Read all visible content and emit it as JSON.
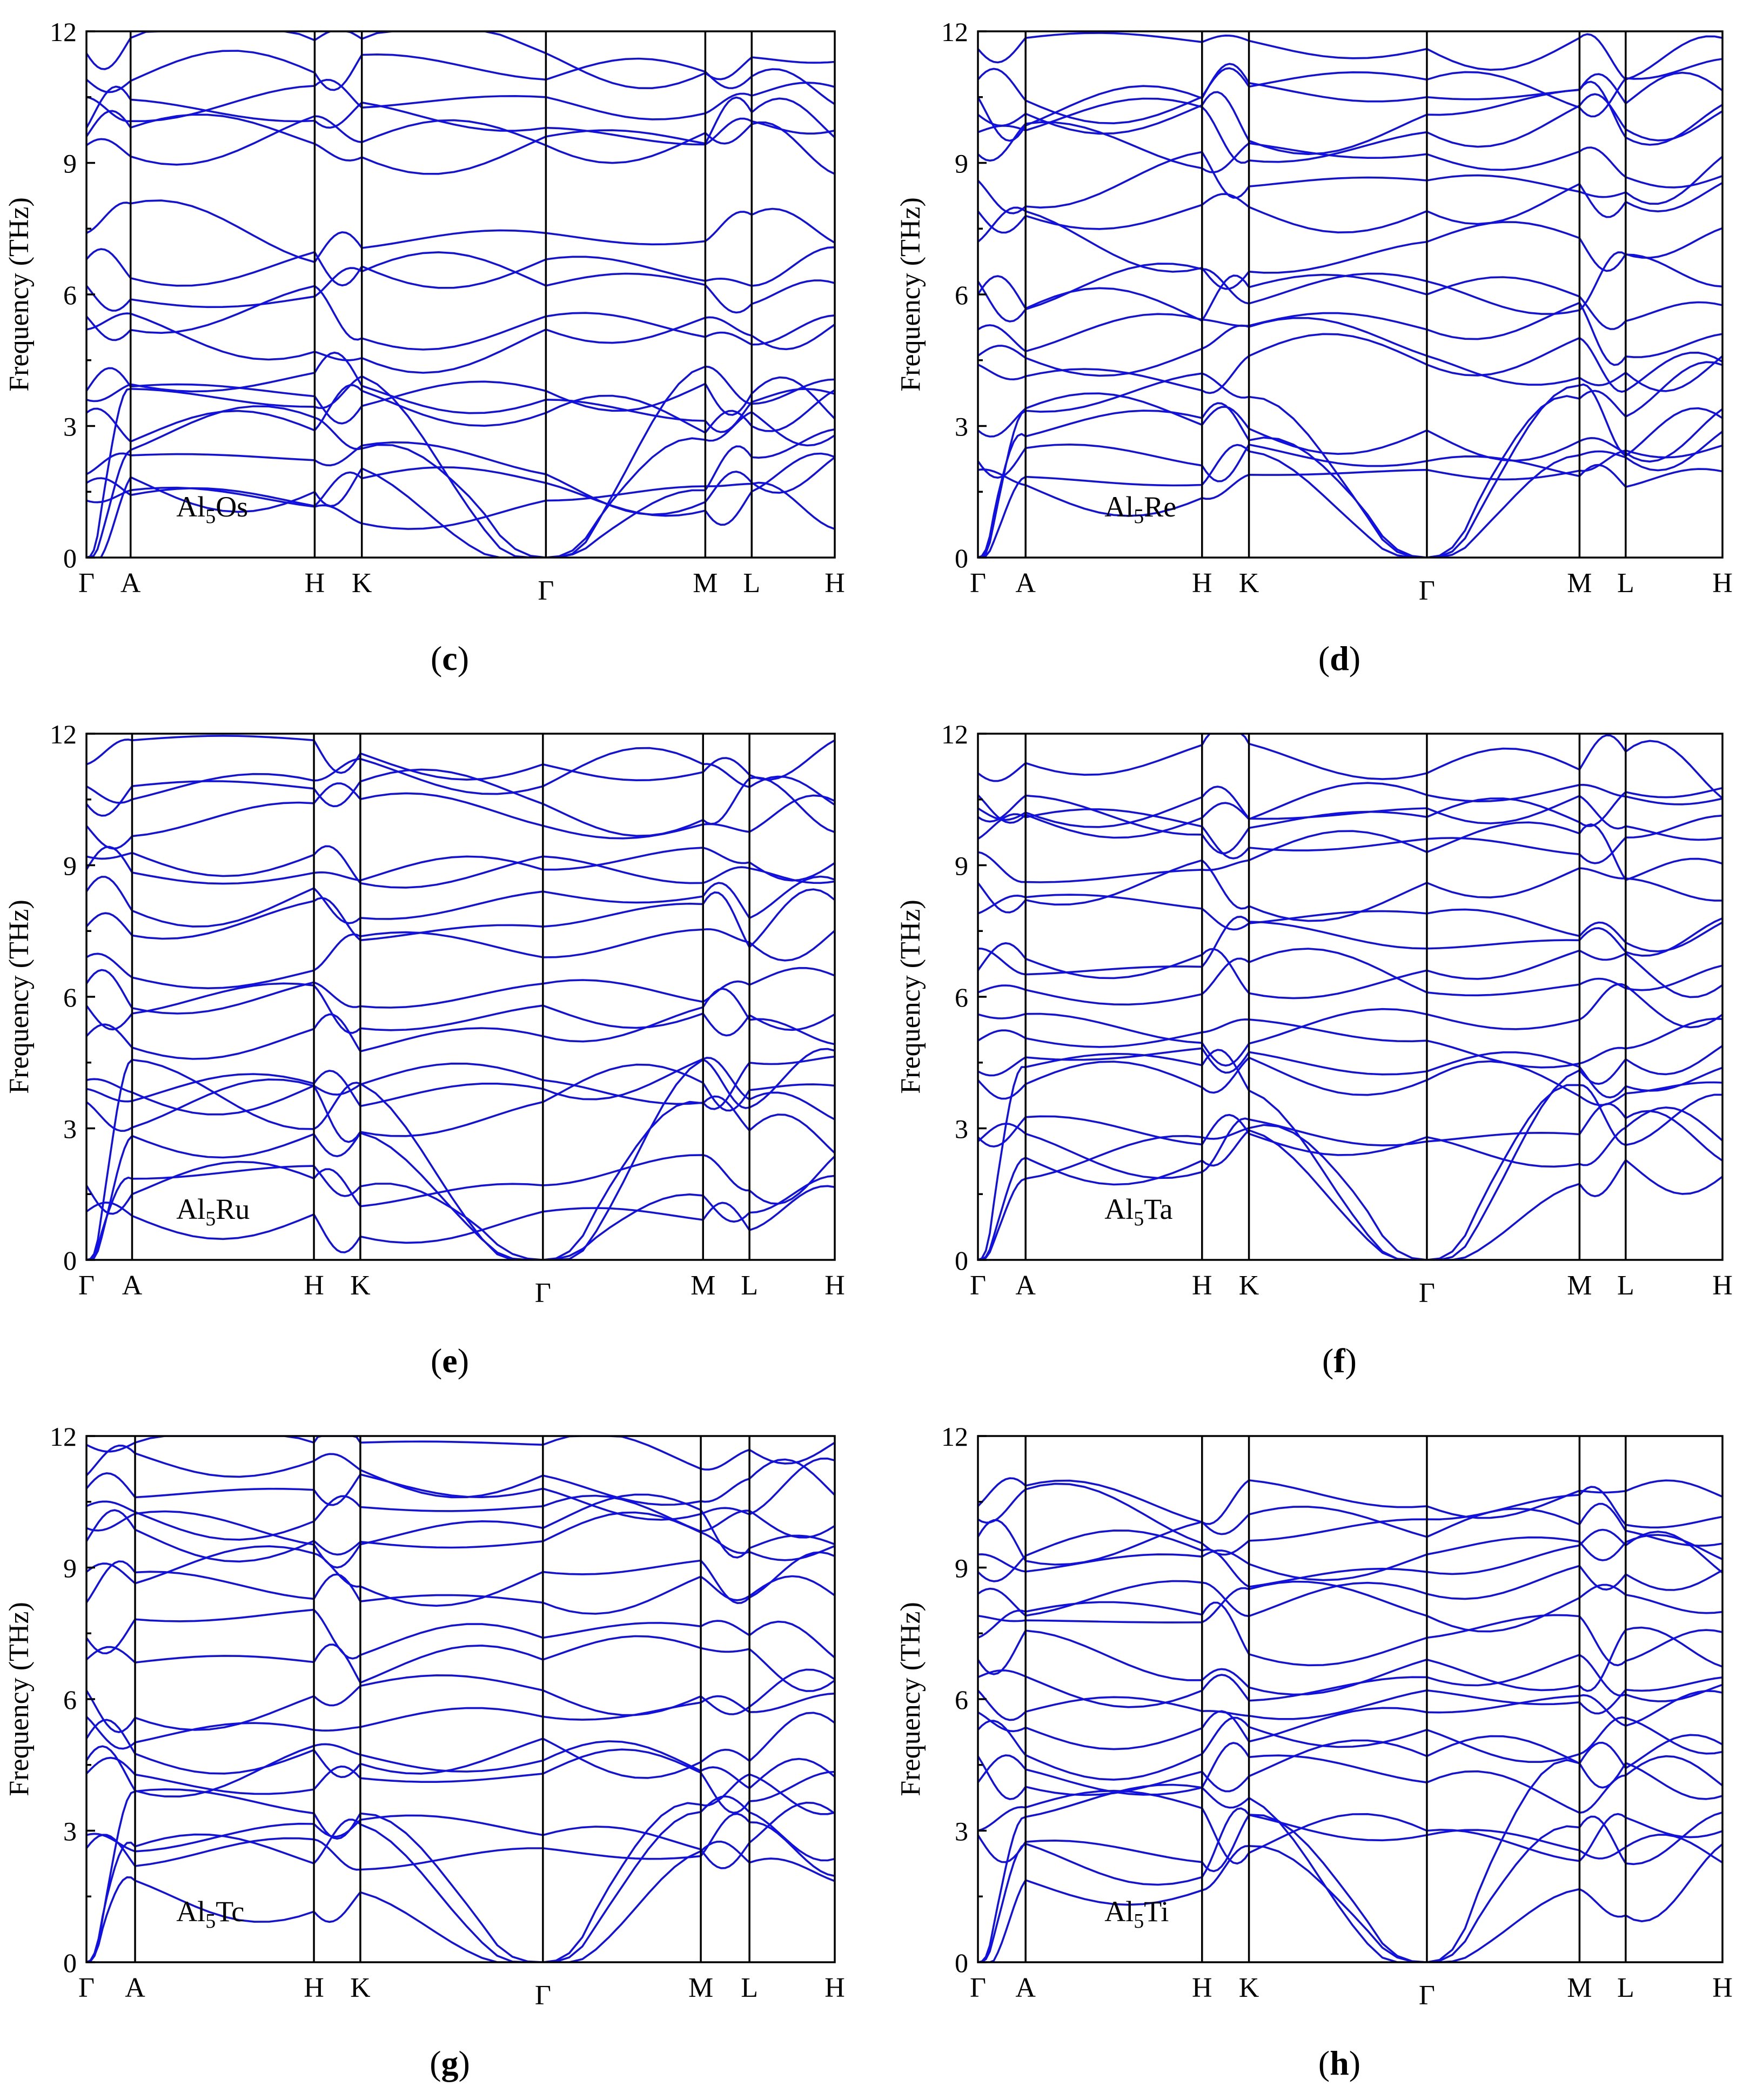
{
  "figure": {
    "colors": {
      "band": "#1010e6",
      "axis": "#000000",
      "background": "#ffffff"
    }
  },
  "chart_data": [
    {
      "type": "line",
      "panel": "c",
      "caption": "(c)",
      "compound_base": "Al",
      "compound_sub": "5",
      "compound_tail": "Os",
      "ylabel": "Frequency (THz)",
      "ylim": [
        0,
        12
      ],
      "yticks": [
        "0",
        "3",
        "6",
        "9",
        "12"
      ],
      "kpoints": [
        {
          "label": "Γ",
          "pos": 0.0
        },
        {
          "label": "A",
          "pos": 0.059
        },
        {
          "label": "H",
          "pos": 0.305
        },
        {
          "label": "K",
          "pos": 0.368
        },
        {
          "label": "Γ",
          "pos": 0.614
        },
        {
          "label": "M",
          "pos": 0.827
        },
        {
          "label": "L",
          "pos": 0.889
        },
        {
          "label": "H",
          "pos": 1.0
        }
      ],
      "gamma_values": [
        0.0,
        0.0,
        0.0,
        1.3,
        1.7,
        1.9,
        3.3,
        3.6,
        3.8,
        5.2,
        5.5,
        6.2,
        6.8,
        7.4,
        9.4,
        9.6,
        9.8,
        10.5,
        10.9,
        11.5
      ],
      "seed": 11
    },
    {
      "type": "line",
      "panel": "d",
      "caption": "(d)",
      "compound_base": "Al",
      "compound_sub": "5",
      "compound_tail": "Re",
      "ylabel": "Frequency (THz)",
      "ylim": [
        0,
        12
      ],
      "yticks": [
        "0",
        "3",
        "6",
        "9",
        "12"
      ],
      "kpoints": [
        {
          "label": "Γ",
          "pos": 0.0
        },
        {
          "label": "A",
          "pos": 0.064
        },
        {
          "label": "H",
          "pos": 0.301
        },
        {
          "label": "K",
          "pos": 0.364
        },
        {
          "label": "Γ",
          "pos": 0.603
        },
        {
          "label": "M",
          "pos": 0.808
        },
        {
          "label": "L",
          "pos": 0.87
        },
        {
          "label": "H",
          "pos": 1.0
        }
      ],
      "gamma_values": [
        0.0,
        0.0,
        0.0,
        2.0,
        2.2,
        2.9,
        4.4,
        4.6,
        5.2,
        6.0,
        6.3,
        7.2,
        7.9,
        8.6,
        9.2,
        9.7,
        10.1,
        10.5,
        10.9,
        11.6
      ],
      "seed": 23
    },
    {
      "type": "line",
      "panel": "e",
      "caption": "(e)",
      "compound_base": "Al",
      "compound_sub": "5",
      "compound_tail": "Ru",
      "ylabel": "Frequency (THz)",
      "ylim": [
        0,
        12
      ],
      "yticks": [
        "0",
        "3",
        "6",
        "9",
        "12"
      ],
      "kpoints": [
        {
          "label": "Γ",
          "pos": 0.0
        },
        {
          "label": "A",
          "pos": 0.061
        },
        {
          "label": "H",
          "pos": 0.304
        },
        {
          "label": "K",
          "pos": 0.366
        },
        {
          "label": "Γ",
          "pos": 0.61
        },
        {
          "label": "M",
          "pos": 0.824
        },
        {
          "label": "L",
          "pos": 0.886
        },
        {
          "label": "H",
          "pos": 1.0
        }
      ],
      "gamma_values": [
        0.0,
        0.0,
        0.0,
        1.1,
        1.7,
        3.6,
        3.9,
        4.1,
        5.1,
        5.8,
        6.3,
        6.9,
        7.6,
        8.4,
        8.9,
        9.2,
        9.9,
        10.4,
        10.8,
        11.3
      ],
      "seed": 37
    },
    {
      "type": "line",
      "panel": "f",
      "caption": "(f)",
      "compound_base": "Al",
      "compound_sub": "5",
      "compound_tail": "Ta",
      "ylabel": "Frequency (THz)",
      "ylim": [
        0,
        12
      ],
      "yticks": [
        "0",
        "3",
        "6",
        "9",
        "12"
      ],
      "kpoints": [
        {
          "label": "Γ",
          "pos": 0.0
        },
        {
          "label": "A",
          "pos": 0.064
        },
        {
          "label": "H",
          "pos": 0.301
        },
        {
          "label": "K",
          "pos": 0.364
        },
        {
          "label": "Γ",
          "pos": 0.603
        },
        {
          "label": "M",
          "pos": 0.808
        },
        {
          "label": "L",
          "pos": 0.87
        },
        {
          "label": "H",
          "pos": 1.0
        }
      ],
      "gamma_values": [
        0.0,
        0.0,
        0.0,
        2.7,
        2.8,
        4.1,
        4.3,
        5.0,
        5.6,
        6.1,
        6.6,
        7.1,
        7.9,
        8.6,
        9.3,
        9.6,
        10.1,
        10.3,
        10.6,
        11.1
      ],
      "seed": 41
    },
    {
      "type": "line",
      "panel": "g",
      "caption": "(g)",
      "compound_base": "Al",
      "compound_sub": "5",
      "compound_tail": "Tc",
      "ylabel": "Frequency (THz)",
      "ylim": [
        0,
        12
      ],
      "yticks": [
        "0",
        "3",
        "6",
        "9",
        "12"
      ],
      "kpoints": [
        {
          "label": "Γ",
          "pos": 0.0
        },
        {
          "label": "A",
          "pos": 0.065
        },
        {
          "label": "H",
          "pos": 0.304
        },
        {
          "label": "K",
          "pos": 0.366
        },
        {
          "label": "Γ",
          "pos": 0.61
        },
        {
          "label": "M",
          "pos": 0.821
        },
        {
          "label": "L",
          "pos": 0.886
        },
        {
          "label": "H",
          "pos": 1.0
        }
      ],
      "gamma_values": [
        0.0,
        0.0,
        0.0,
        2.6,
        2.9,
        4.3,
        4.6,
        5.1,
        5.6,
        6.2,
        6.9,
        7.4,
        8.2,
        8.9,
        9.6,
        9.9,
        10.4,
        10.8,
        11.1,
        11.8
      ],
      "seed": 53
    },
    {
      "type": "line",
      "panel": "h",
      "caption": "(h)",
      "compound_base": "Al",
      "compound_sub": "5",
      "compound_tail": "Ti",
      "ylabel": "Frequency (THz)",
      "ylim": [
        0,
        12
      ],
      "yticks": [
        "0",
        "3",
        "6",
        "9",
        "12"
      ],
      "kpoints": [
        {
          "label": "Γ",
          "pos": 0.0
        },
        {
          "label": "A",
          "pos": 0.064
        },
        {
          "label": "H",
          "pos": 0.301
        },
        {
          "label": "K",
          "pos": 0.364
        },
        {
          "label": "Γ",
          "pos": 0.603
        },
        {
          "label": "M",
          "pos": 0.808
        },
        {
          "label": "L",
          "pos": 0.87
        },
        {
          "label": "H",
          "pos": 1.0
        }
      ],
      "gamma_values": [
        0.0,
        0.0,
        0.0,
        2.9,
        3.0,
        4.1,
        4.7,
        5.3,
        5.7,
        6.2,
        6.5,
        6.9,
        7.4,
        7.9,
        8.4,
        8.9,
        9.3,
        9.7,
        10.1,
        10.4
      ],
      "seed": 67
    }
  ]
}
